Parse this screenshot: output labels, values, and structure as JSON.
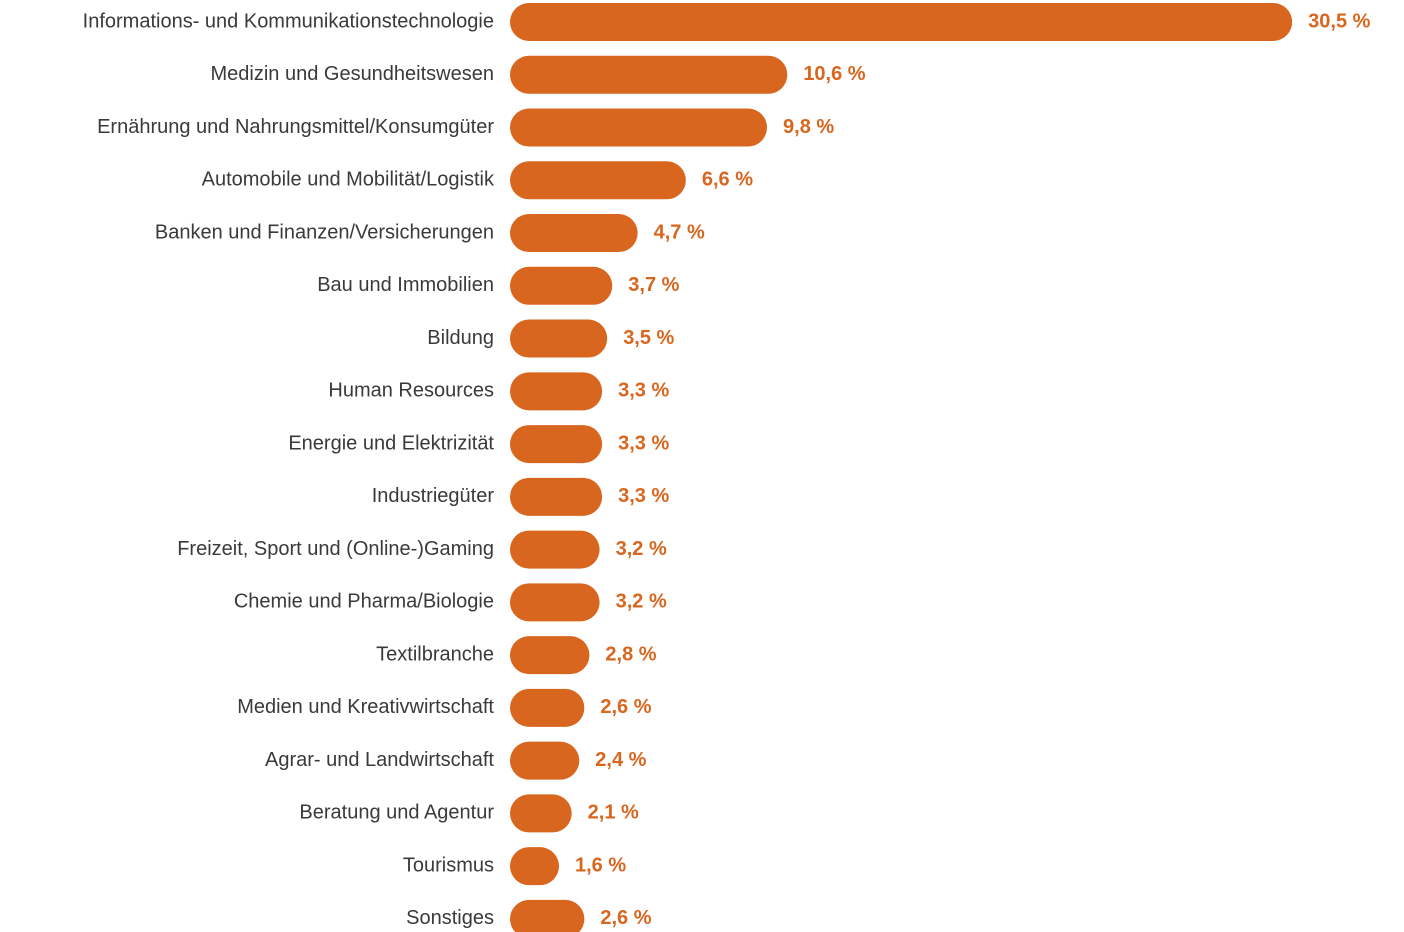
{
  "chart_data": {
    "type": "bar",
    "orientation": "horizontal",
    "color": "#d8661e",
    "categories": [
      "Informations- und Kommunikationstechnologie",
      "Medizin und Gesundheitswesen",
      "Ernährung und Nahrungsmittel/Konsumgüter",
      "Automobile und Mobilität/Logistik",
      "Banken und Finanzen/Versicherungen",
      "Bau und Immobilien",
      "Bildung",
      "Human Resources",
      "Energie und Elektrizität",
      "Industriegüter",
      "Freizeit, Sport und (Online-)Gaming",
      "Chemie und Pharma/Biologie",
      "Textilbranche",
      "Medien und Kreativwirtschaft",
      "Agrar- und Landwirtschaft",
      "Beratung und Agentur",
      "Tourismus",
      "Sonstiges"
    ],
    "values": [
      30.5,
      10.6,
      9.8,
      6.6,
      4.7,
      3.7,
      3.5,
      3.3,
      3.3,
      3.3,
      3.2,
      3.2,
      2.8,
      2.6,
      2.4,
      2.1,
      1.6,
      2.6
    ],
    "value_labels": [
      "30,5 %",
      "10,6 %",
      "9,8 %",
      "6,6 %",
      "4,7 %",
      "3,7 %",
      "3,5 %",
      "3,3 %",
      "3,3 %",
      "3,3 %",
      "3,2 %",
      "3,2 %",
      "2,8 %",
      "2,6 %",
      "2,4 %",
      "2,1 %",
      "1,6 %",
      "2,6 %"
    ]
  }
}
